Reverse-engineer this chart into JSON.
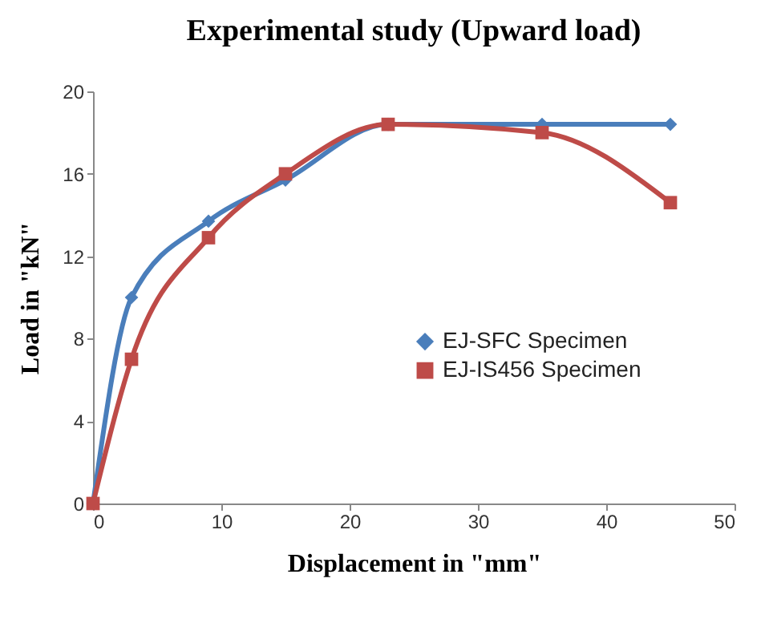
{
  "chart_data": {
    "type": "line",
    "title": "Experimental study (Upward load)",
    "xlabel": "Displacement in \"mm\"",
    "ylabel": "Load in \"kN\"",
    "x": [
      0,
      3,
      9,
      15,
      23,
      35,
      45
    ],
    "series": [
      {
        "name": "EJ-SFC Specimen",
        "color": "#4a7ebb",
        "marker": "diamond",
        "values": [
          0,
          10,
          13.7,
          15.7,
          18.4,
          18.4,
          18.4
        ]
      },
      {
        "name": "EJ-IS456 Specimen",
        "color": "#be4b48",
        "marker": "square",
        "values": [
          0,
          7,
          12.9,
          16,
          18.4,
          18,
          14.6
        ]
      }
    ],
    "xlim": [
      0,
      50
    ],
    "xticks": [
      0,
      10,
      20,
      30,
      40,
      50
    ],
    "ylim": [
      0,
      20
    ],
    "yticks": [
      0,
      4,
      8,
      12,
      16,
      20
    ],
    "grid": false,
    "legend": "right"
  }
}
